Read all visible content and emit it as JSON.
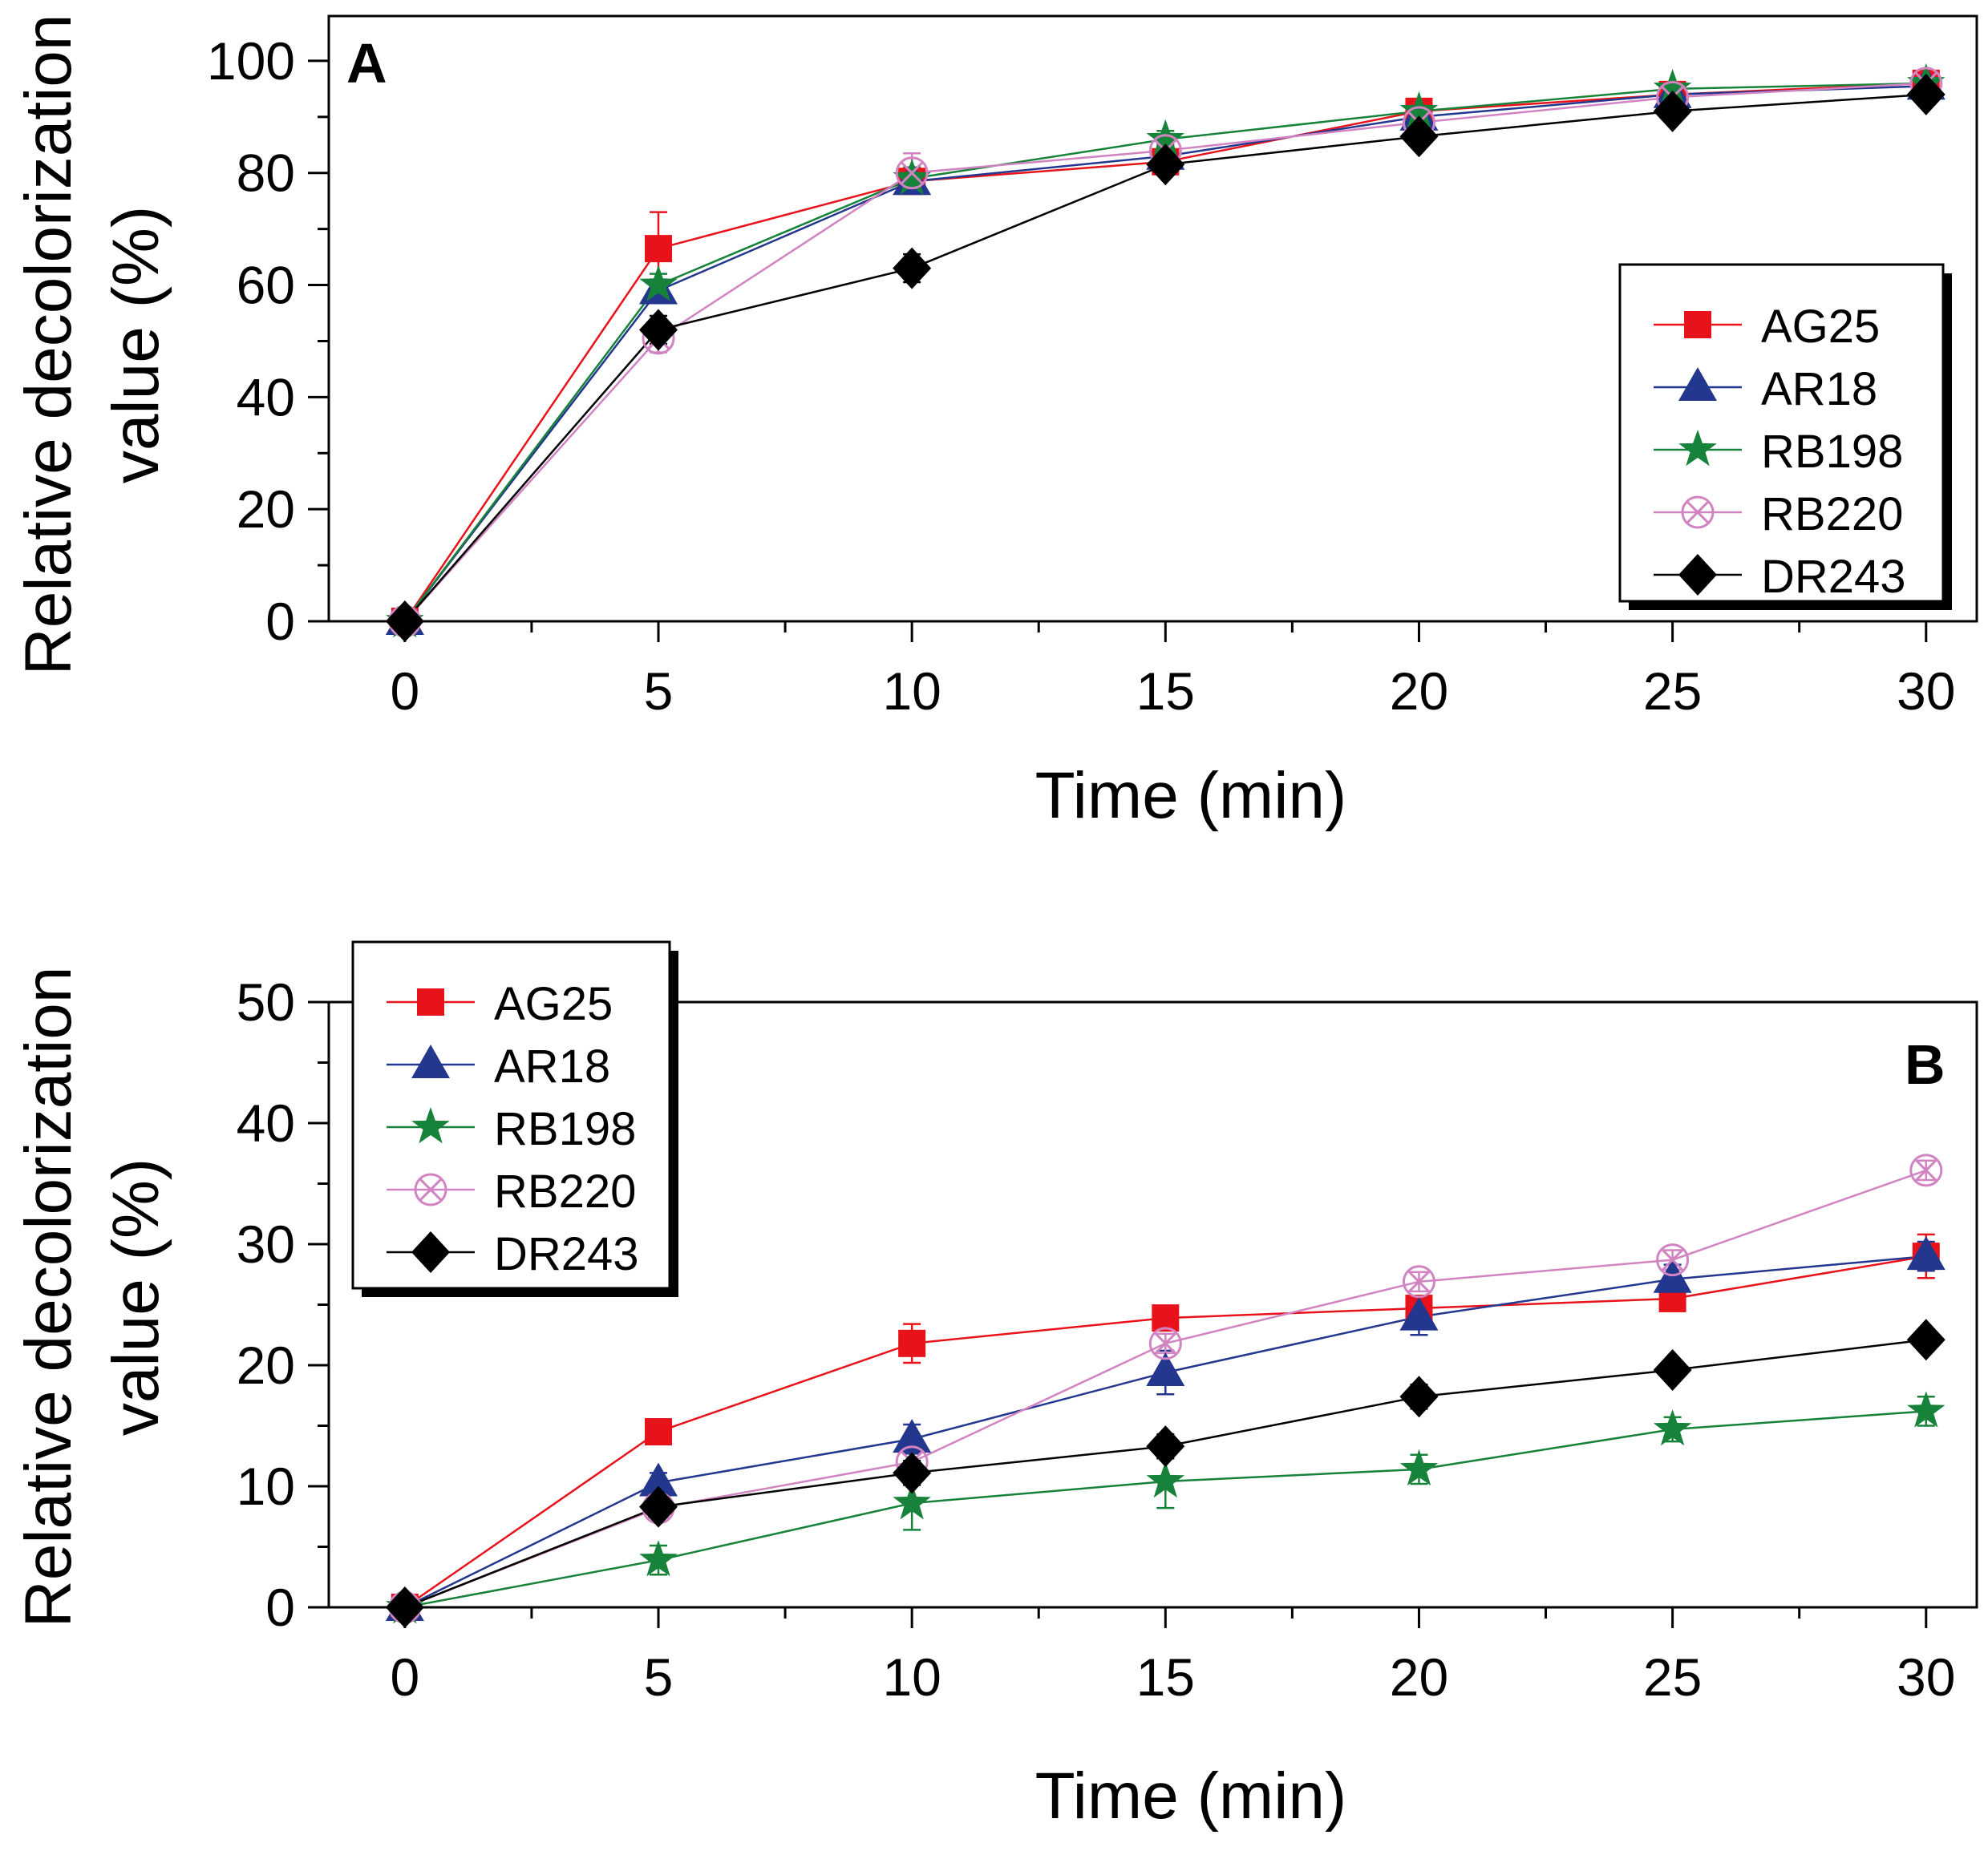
{
  "chart_data": [
    {
      "panel_label": "A",
      "type": "line",
      "title": "",
      "xlabel": "Time (min)",
      "ylabel": [
        "Relative decolorization",
        "value (%)"
      ],
      "x": [
        0,
        5,
        10,
        15,
        20,
        25,
        30
      ],
      "xlim": [
        -1.5,
        31
      ],
      "ylim": [
        0,
        108
      ],
      "x_ticks": [
        "0",
        "5",
        "10",
        "15",
        "20",
        "25",
        "30"
      ],
      "y_ticks": [
        "0",
        "20",
        "40",
        "60",
        "80",
        "100"
      ],
      "x_tick_values": [
        0,
        5,
        10,
        15,
        20,
        25,
        30
      ],
      "y_tick_values": [
        0,
        20,
        40,
        60,
        80,
        100
      ],
      "legend_position": "right",
      "series": [
        {
          "name": "AG25",
          "color": "#e8131a",
          "marker": "square",
          "values": [
            0,
            66.5,
            78.5,
            82,
            91,
            94,
            96
          ],
          "errors": [
            0.5,
            6.5,
            1.5,
            2,
            1,
            1,
            1
          ]
        },
        {
          "name": "AR18",
          "color": "#24378f",
          "marker": "triangle",
          "values": [
            0,
            59,
            78.5,
            83,
            90,
            94,
            95.5
          ],
          "errors": [
            0.5,
            2,
            1.5,
            2,
            1,
            1,
            1
          ]
        },
        {
          "name": "RB198",
          "color": "#17823a",
          "marker": "star",
          "values": [
            0,
            60,
            79,
            86,
            91,
            95,
            96
          ],
          "errors": [
            0.5,
            2,
            2,
            1.5,
            1,
            1,
            1
          ]
        },
        {
          "name": "RB220",
          "color": "#d184c1",
          "marker": "circle-x",
          "values": [
            0,
            50.5,
            80,
            84,
            89,
            93.5,
            96
          ],
          "errors": [
            0.5,
            2.5,
            3.5,
            2,
            2.5,
            1,
            1
          ]
        },
        {
          "name": "DR243",
          "color": "#000000",
          "marker": "diamond",
          "values": [
            0,
            52,
            63,
            81.5,
            86.5,
            91,
            94
          ],
          "errors": [
            0.5,
            2.5,
            2.5,
            1.5,
            1,
            1,
            1
          ]
        }
      ]
    },
    {
      "panel_label": "B",
      "type": "line",
      "title": "",
      "xlabel": "Time (min)",
      "ylabel": [
        "Relative decolorization",
        "value (%)"
      ],
      "x": [
        0,
        5,
        10,
        15,
        20,
        25,
        30
      ],
      "xlim": [
        -1.5,
        31
      ],
      "ylim": [
        0,
        50
      ],
      "x_ticks": [
        "0",
        "5",
        "10",
        "15",
        "20",
        "25",
        "30"
      ],
      "y_ticks": [
        "0",
        "10",
        "20",
        "30",
        "40",
        "50"
      ],
      "x_tick_values": [
        0,
        5,
        10,
        15,
        20,
        25,
        30
      ],
      "y_tick_values": [
        0,
        10,
        20,
        30,
        40,
        50
      ],
      "legend_position": "top-left",
      "series": [
        {
          "name": "AG25",
          "color": "#e8131a",
          "marker": "square",
          "values": [
            0,
            14.5,
            21.8,
            23.9,
            24.7,
            25.5,
            29
          ],
          "errors": [
            0.3,
            0.8,
            1.6,
            0.8,
            0.8,
            0.8,
            1.8
          ]
        },
        {
          "name": "AR18",
          "color": "#24378f",
          "marker": "triangle",
          "values": [
            0,
            10.3,
            13.9,
            19.4,
            24,
            27.1,
            29
          ],
          "errors": [
            0.3,
            0.8,
            1.2,
            1.8,
            1.5,
            1.2,
            1.2
          ]
        },
        {
          "name": "RB198",
          "color": "#17823a",
          "marker": "star",
          "values": [
            0,
            3.9,
            8.6,
            10.4,
            11.4,
            14.7,
            16.2
          ],
          "errors": [
            0.3,
            1.2,
            2.2,
            2.2,
            1.2,
            1,
            1.2
          ]
        },
        {
          "name": "RB220",
          "color": "#d184c1",
          "marker": "circle-x",
          "values": [
            0,
            8.2,
            12,
            21.8,
            26.9,
            28.7,
            36.1
          ],
          "errors": [
            0.3,
            0.8,
            1,
            0.8,
            0.8,
            0.8,
            0.8
          ]
        },
        {
          "name": "DR243",
          "color": "#000000",
          "marker": "diamond",
          "values": [
            0,
            8.3,
            11.1,
            13.3,
            17.4,
            19.6,
            22.1
          ],
          "errors": [
            0.3,
            0.8,
            1,
            1,
            1,
            0.8,
            0.8
          ]
        }
      ]
    }
  ]
}
